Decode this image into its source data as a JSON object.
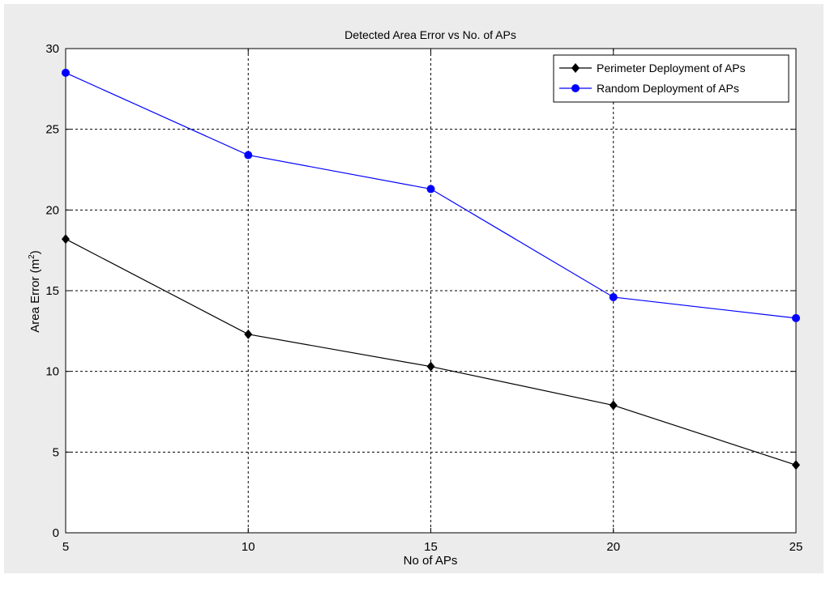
{
  "chart_data": {
    "type": "line",
    "title": "Detected Area Error vs No. of APs",
    "xlabel": "No of APs",
    "ylabel": "Area Error (m",
    "ylabel_sup": "2",
    "ylabel_end": ")",
    "xlim": [
      5,
      25
    ],
    "ylim": [
      0,
      30
    ],
    "xticks": [
      5,
      10,
      15,
      20,
      25
    ],
    "yticks": [
      0,
      5,
      10,
      15,
      20,
      25,
      30
    ],
    "grid": true,
    "legend_position": "top-right",
    "x": [
      5,
      10,
      15,
      20,
      25
    ],
    "series": [
      {
        "name": "Perimeter Deployment of APs",
        "values": [
          18.2,
          12.3,
          10.3,
          7.9,
          4.2
        ],
        "color": "#000000",
        "marker": "diamond"
      },
      {
        "name": "Random Deployment of APs",
        "values": [
          28.5,
          23.4,
          21.3,
          14.6,
          13.3
        ],
        "color": "#0000ff",
        "marker": "circle"
      }
    ]
  },
  "colors": {
    "frame_background": "#ececec",
    "axes_background": "#ffffff",
    "grid": "#000000"
  }
}
